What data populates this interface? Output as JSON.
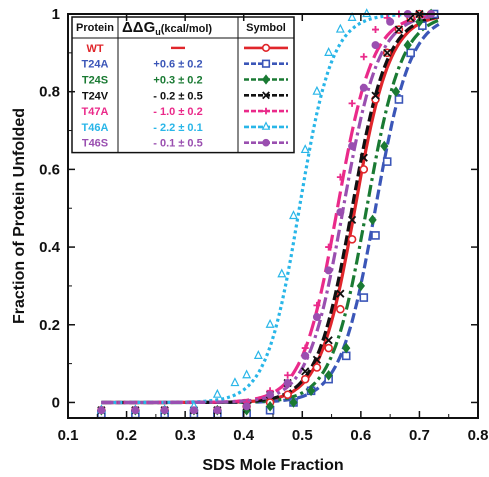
{
  "chart_data": {
    "type": "line",
    "title": "",
    "xlabel": "SDS Mole Fraction",
    "ylabel": "Fraction of Protein Unfolded",
    "xlim": [
      0.1,
      0.8
    ],
    "ylim": [
      -0.04,
      1.0
    ],
    "xticks": [
      "0.1",
      "0.2",
      "0.3",
      "0.4",
      "0.5",
      "0.6",
      "0.7",
      "0.8"
    ],
    "yticks": [
      "0",
      "0.2",
      "0.4",
      "0.6",
      "0.8",
      "1"
    ],
    "grid": false,
    "legend": {
      "placement": "top-left",
      "headers": {
        "protein": "Protein",
        "ddg_prefix": "ΔΔG",
        "ddg_sub": "u",
        "ddg_unit": "(kcal/mol)",
        "symbol": "Symbol"
      }
    },
    "series": [
      {
        "name": "WT",
        "ddg": "—",
        "color": "#e0262b",
        "marker": "open-circle",
        "dash": "solid",
        "midpoint": 0.59,
        "slope": 0.03,
        "x": [
          0.157,
          0.215,
          0.265,
          0.315,
          0.355,
          0.405,
          0.445,
          0.475,
          0.505,
          0.525,
          0.545,
          0.565,
          0.585,
          0.605,
          0.625,
          0.645,
          0.665,
          0.685,
          0.7,
          0.72
        ],
        "y": [
          -0.02,
          -0.02,
          -0.02,
          -0.02,
          -0.02,
          -0.01,
          0.0,
          0.02,
          0.06,
          0.09,
          0.14,
          0.24,
          0.42,
          0.6,
          0.78,
          0.9,
          0.96,
          0.99,
          1.0,
          1.0
        ]
      },
      {
        "name": "T24A",
        "ddg": "+0.6 ± 0.2",
        "color": "#3b56b8",
        "marker": "open-square",
        "dash": "dash",
        "midpoint": 0.625,
        "slope": 0.03,
        "x": [
          0.157,
          0.215,
          0.265,
          0.315,
          0.355,
          0.405,
          0.445,
          0.485,
          0.515,
          0.545,
          0.575,
          0.605,
          0.625,
          0.645,
          0.665,
          0.685,
          0.705,
          0.725
        ],
        "y": [
          -0.03,
          -0.03,
          -0.03,
          -0.03,
          -0.03,
          -0.03,
          -0.02,
          0.0,
          0.03,
          0.06,
          0.12,
          0.27,
          0.43,
          0.62,
          0.78,
          0.9,
          0.97,
          1.0
        ]
      },
      {
        "name": "T24S",
        "ddg": "+0.3 ± 0.2",
        "color": "#1a7a33",
        "marker": "filled-diamond",
        "dash": "dashdot",
        "midpoint": 0.61,
        "slope": 0.03,
        "x": [
          0.157,
          0.215,
          0.265,
          0.315,
          0.355,
          0.405,
          0.445,
          0.485,
          0.515,
          0.545,
          0.575,
          0.6,
          0.62,
          0.64,
          0.66,
          0.68,
          0.7,
          0.72
        ],
        "y": [
          -0.02,
          -0.02,
          -0.02,
          -0.02,
          -0.02,
          -0.02,
          -0.01,
          0.0,
          0.03,
          0.07,
          0.14,
          0.3,
          0.47,
          0.66,
          0.8,
          0.92,
          0.98,
          1.0
        ]
      },
      {
        "name": "T24V",
        "ddg": "- 0.2 ± 0.5",
        "color": "#111111",
        "marker": "x",
        "dash": "dash",
        "midpoint": 0.585,
        "slope": 0.03,
        "x": [
          0.157,
          0.215,
          0.265,
          0.315,
          0.355,
          0.405,
          0.445,
          0.475,
          0.505,
          0.525,
          0.545,
          0.565,
          0.585,
          0.605,
          0.625,
          0.645,
          0.665,
          0.685,
          0.7
        ],
        "y": [
          -0.02,
          -0.02,
          -0.02,
          -0.02,
          -0.02,
          -0.01,
          0.02,
          0.05,
          0.08,
          0.11,
          0.16,
          0.28,
          0.47,
          0.63,
          0.79,
          0.9,
          0.96,
          0.99,
          1.0
        ]
      },
      {
        "name": "T47A",
        "ddg": "- 1.0 ± 0.2",
        "color": "#ea2a8a",
        "marker": "plus",
        "dash": "longdash",
        "midpoint": 0.56,
        "slope": 0.03,
        "x": [
          0.157,
          0.215,
          0.265,
          0.315,
          0.355,
          0.405,
          0.445,
          0.475,
          0.505,
          0.525,
          0.545,
          0.565,
          0.585,
          0.605,
          0.625,
          0.645,
          0.665
        ],
        "y": [
          -0.02,
          -0.02,
          -0.02,
          -0.02,
          -0.02,
          0.0,
          0.03,
          0.07,
          0.14,
          0.25,
          0.4,
          0.58,
          0.77,
          0.89,
          0.96,
          0.99,
          1.0
        ]
      },
      {
        "name": "T46A",
        "ddg": "- 2.2 ± 0.1",
        "color": "#29b6e8",
        "marker": "open-triangle",
        "dash": "dot",
        "midpoint": 0.495,
        "slope": 0.028,
        "x": [
          0.157,
          0.215,
          0.265,
          0.315,
          0.355,
          0.385,
          0.405,
          0.425,
          0.445,
          0.465,
          0.485,
          0.505,
          0.525,
          0.545,
          0.565,
          0.585,
          0.61
        ],
        "y": [
          -0.02,
          -0.02,
          -0.02,
          -0.01,
          0.02,
          0.05,
          0.07,
          0.12,
          0.2,
          0.33,
          0.48,
          0.65,
          0.8,
          0.9,
          0.96,
          0.99,
          1.0
        ]
      },
      {
        "name": "T46S",
        "ddg": "- 0.1 ± 0.5",
        "color": "#9a4fb0",
        "marker": "filled-circle",
        "dash": "dashdot",
        "midpoint": 0.57,
        "slope": 0.03,
        "x": [
          0.157,
          0.215,
          0.265,
          0.315,
          0.355,
          0.405,
          0.445,
          0.475,
          0.505,
          0.525,
          0.545,
          0.565,
          0.585,
          0.605,
          0.625,
          0.65,
          0.68,
          0.72
        ],
        "y": [
          -0.02,
          -0.02,
          -0.02,
          -0.02,
          -0.02,
          -0.01,
          0.02,
          0.05,
          0.12,
          0.22,
          0.34,
          0.49,
          0.66,
          0.81,
          0.92,
          0.98,
          1.0,
          1.0
        ]
      }
    ]
  }
}
